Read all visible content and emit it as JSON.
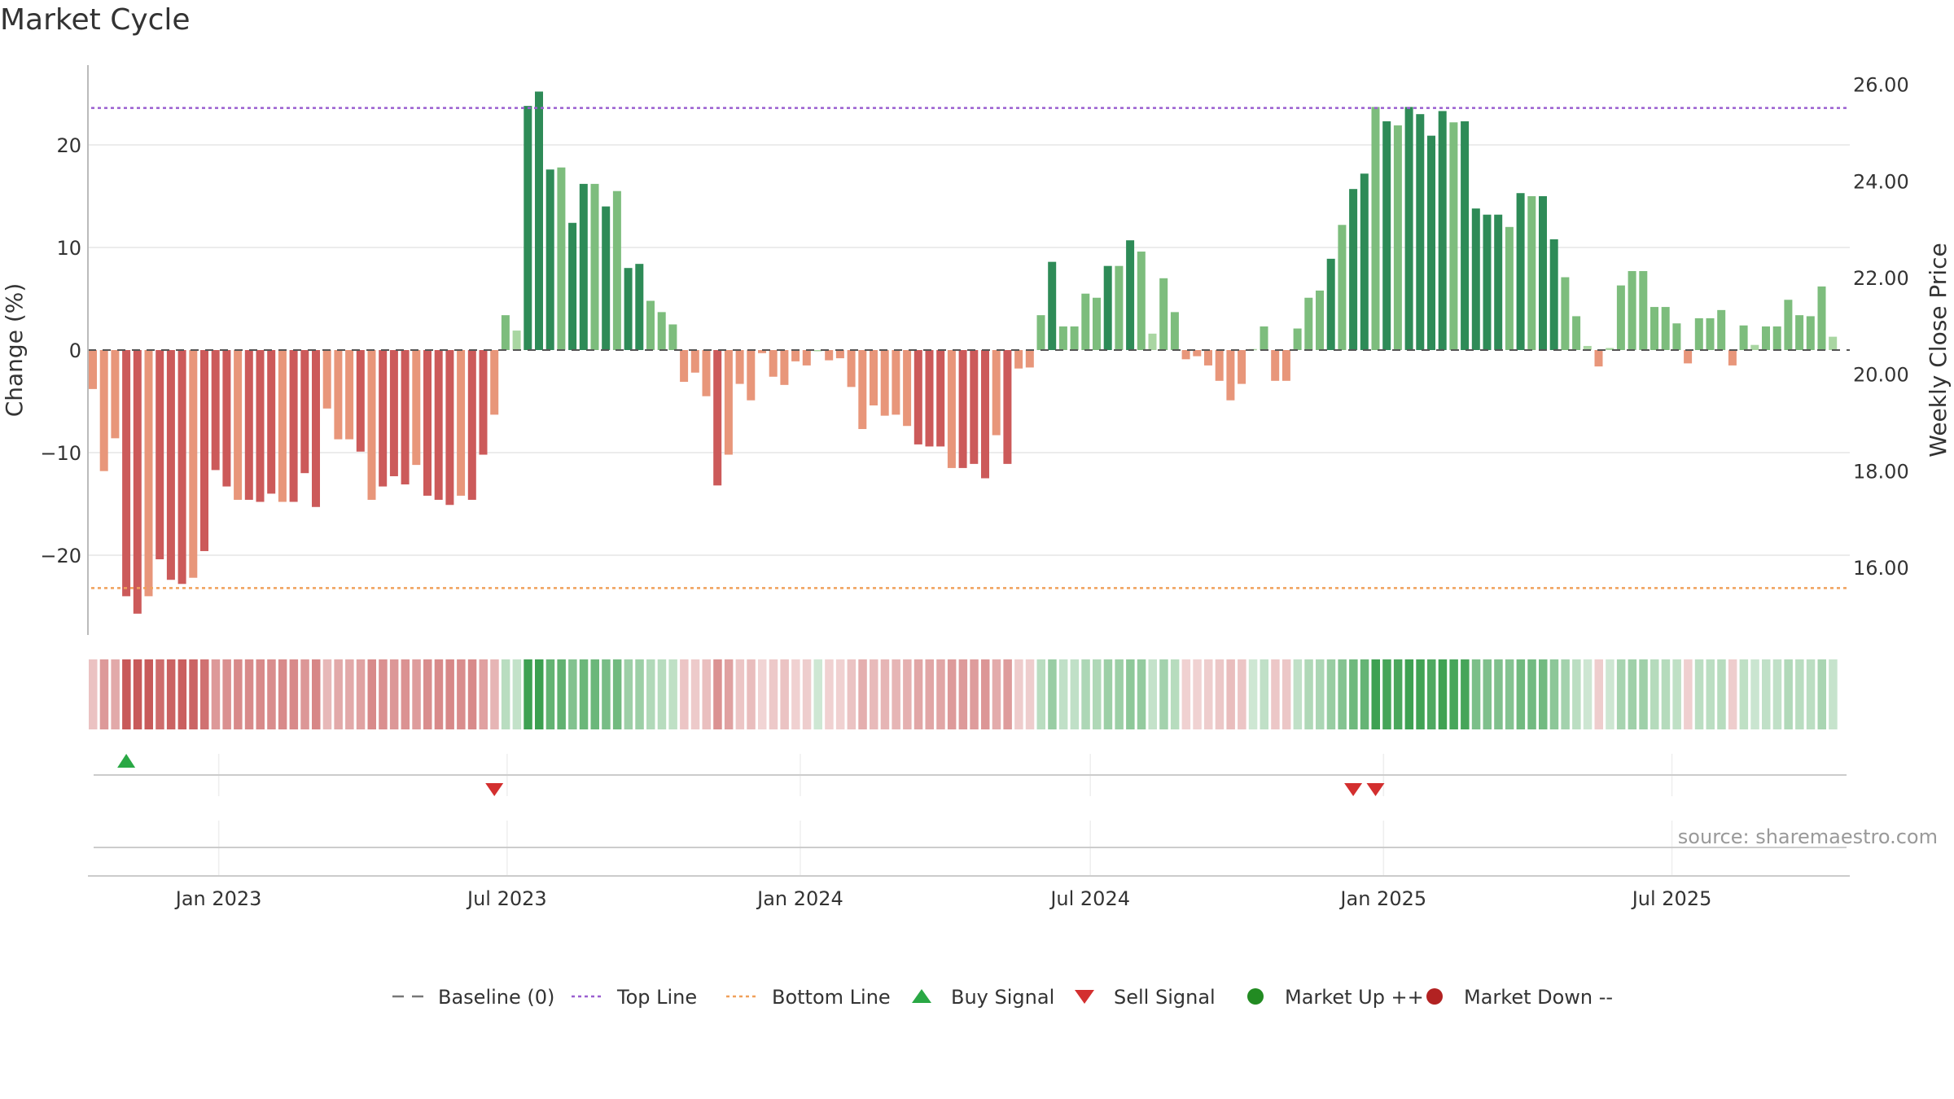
{
  "title": "Market Cycle",
  "source": "source: sharemaestro.com",
  "chart_data": {
    "type": "bar",
    "title": "Market Cycle",
    "ylabel_left": "Change (%)",
    "ylabel_right": "Weekly Close Price",
    "ylim_left": [
      -28,
      28
    ],
    "ylim_right": [
      14.6,
      26.4
    ],
    "yticks_left": [
      "−20",
      "−10",
      "0",
      "10",
      "20"
    ],
    "yticks_left_values": [
      -20,
      -10,
      0,
      10,
      20
    ],
    "yticks_right": [
      "16.00",
      "18.00",
      "20.00",
      "22.00",
      "24.00",
      "26.00"
    ],
    "yticks_right_values": [
      16,
      18,
      20,
      22,
      24,
      26
    ],
    "x_start": "2022-10-14",
    "x_interval": "weekly",
    "xticks": [
      {
        "label": "Jan 2023",
        "date": "2023-01-01"
      },
      {
        "label": "Jul 2023",
        "date": "2023-07-01"
      },
      {
        "label": "Jan 2024",
        "date": "2024-01-01"
      },
      {
        "label": "Jul 2024",
        "date": "2024-07-01"
      },
      {
        "label": "Jan 2025",
        "date": "2025-01-01"
      },
      {
        "label": "Jul 2025",
        "date": "2025-07-01"
      }
    ],
    "top_line": 23.6,
    "bottom_line": -23.2,
    "values": [
      -3.8,
      -11.8,
      -8.6,
      -24,
      -25.7,
      -24,
      -20.4,
      -22.4,
      -22.8,
      -22.2,
      -19.6,
      -11.7,
      -13.3,
      -14.6,
      -14.6,
      -14.8,
      -14,
      -14.8,
      -14.8,
      -12,
      -15.3,
      -5.7,
      -8.7,
      -8.7,
      -9.9,
      -14.6,
      -13.3,
      -12.3,
      -13.1,
      -11.2,
      -14.2,
      -14.6,
      -15.1,
      -14.2,
      -14.6,
      -10.2,
      -6.3,
      3.4,
      1.9,
      23.8,
      25.2,
      17.6,
      17.8,
      12.4,
      16.2,
      16.2,
      14,
      15.5,
      8,
      8.4,
      4.8,
      3.7,
      2.5,
      -3.1,
      -2.2,
      -4.5,
      -13.2,
      -10.2,
      -3.3,
      -4.9,
      -0.3,
      -2.6,
      -3.4,
      -1.1,
      -1.5,
      0,
      -1,
      -0.8,
      -3.6,
      -7.7,
      -5.4,
      -6.4,
      -6.3,
      -7.4,
      -9.2,
      -9.4,
      -9.4,
      -11.5,
      -11.5,
      -11.1,
      -12.5,
      -8.3,
      -11.1,
      -1.8,
      -1.7,
      3.4,
      8.6,
      2.3,
      2.3,
      5.5,
      5.1,
      8.2,
      8.2,
      10.7,
      9.6,
      1.6,
      7,
      3.7,
      -0.9,
      -0.6,
      -1.5,
      -3,
      -4.9,
      -3.3,
      0.1,
      2.3,
      -3,
      -3,
      2.1,
      5.1,
      5.8,
      8.9,
      12.2,
      15.7,
      17.2,
      23.7,
      22.3,
      21.9,
      23.7,
      23,
      20.9,
      23.3,
      22.2,
      22.3,
      13.8,
      13.2,
      13.2,
      12,
      15.3,
      15,
      15,
      10.8,
      7.1,
      3.3,
      0.4,
      -1.6,
      0.2,
      6.3,
      7.7,
      7.7,
      4.2,
      4.2,
      2.6,
      -1.3,
      3.1,
      3.1,
      3.9,
      -1.5,
      2.4,
      0.5,
      2.3,
      2.3,
      4.9,
      3.4,
      3.3,
      6.2,
      1.3
    ],
    "buy_signals": [
      {
        "date": "2022-11-04"
      }
    ],
    "sell_signals": [
      {
        "date": "2023-06-23"
      },
      {
        "date": "2024-12-13"
      },
      {
        "date": "2024-12-27"
      }
    ],
    "legend": [
      {
        "label": "Baseline (0)",
        "color": "#777777",
        "style": "dashed-line"
      },
      {
        "label": "Top Line",
        "color": "#9a5fd0",
        "style": "dotted-line"
      },
      {
        "label": "Bottom Line",
        "color": "#f0a05a",
        "style": "dotted-line"
      },
      {
        "label": "Buy Signal",
        "color": "#2aa845",
        "style": "triangle-up"
      },
      {
        "label": "Sell Signal",
        "color": "#d32f2f",
        "style": "triangle-down"
      },
      {
        "label": "Market Up ++",
        "color": "#228b22",
        "style": "circle"
      },
      {
        "label": "Market Down --",
        "color": "#b22222",
        "style": "circle"
      }
    ],
    "legend_position": "bottom-center",
    "grid": true
  }
}
